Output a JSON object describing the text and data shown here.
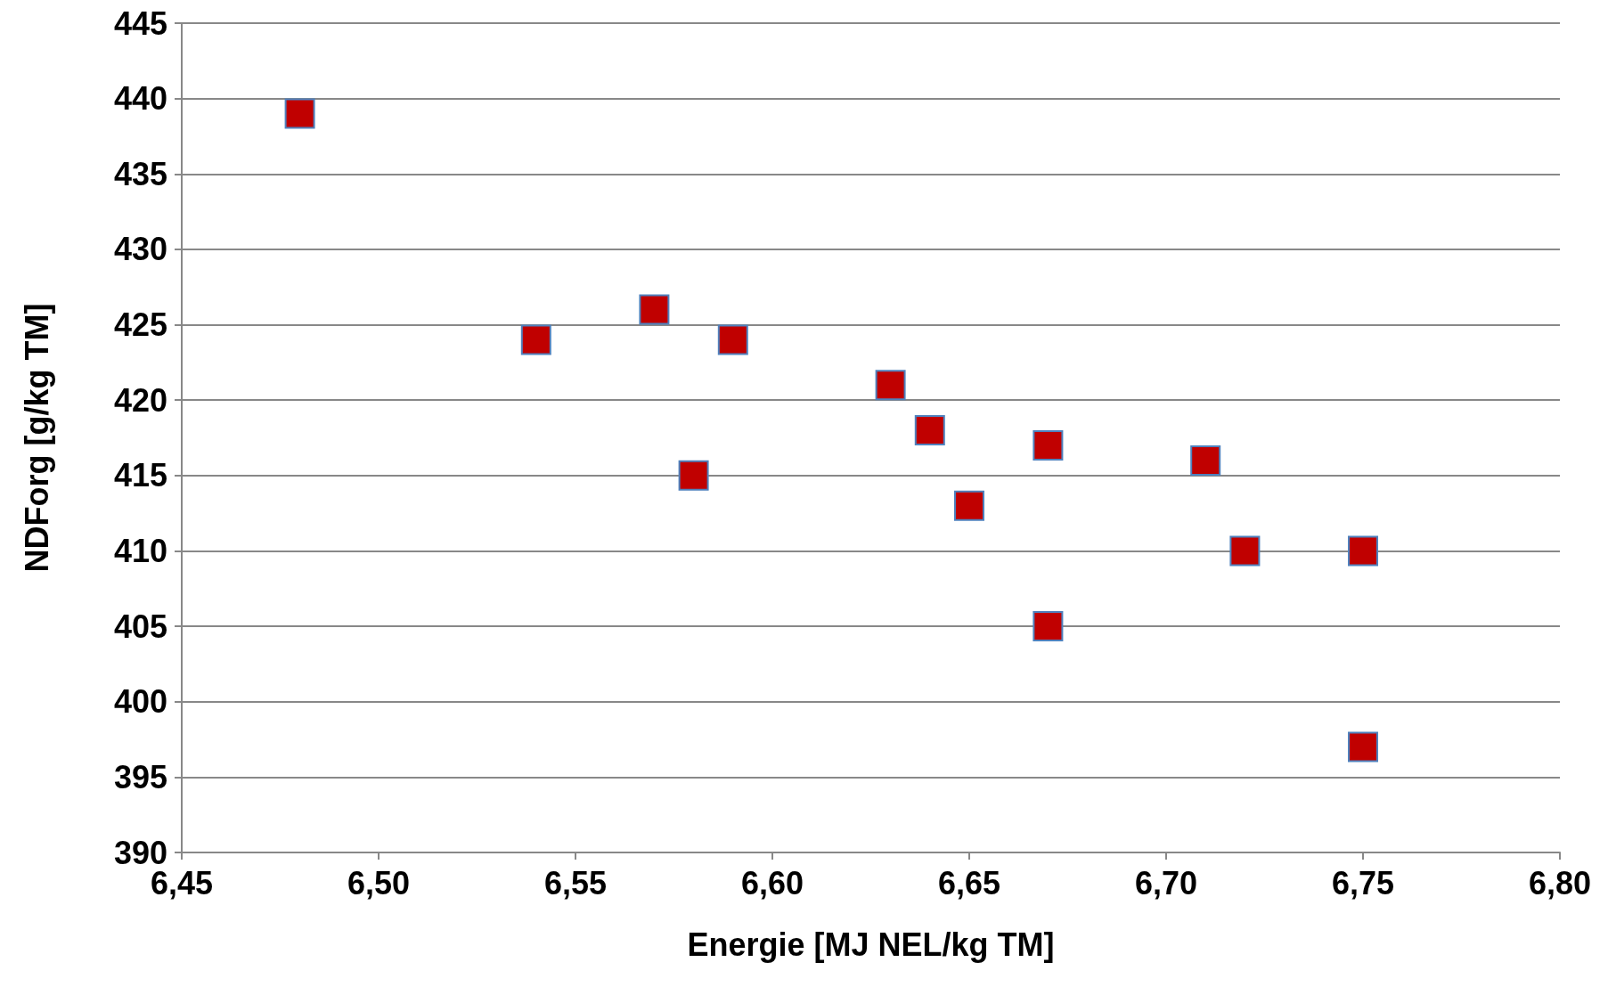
{
  "chart_data": {
    "type": "scatter",
    "xlabel": "Energie [MJ NEL/kg TM]",
    "ylabel": "NDForg [g/kg TM]",
    "x": [
      6.48,
      6.54,
      6.57,
      6.58,
      6.59,
      6.63,
      6.64,
      6.65,
      6.67,
      6.67,
      6.71,
      6.72,
      6.75,
      6.75
    ],
    "series": [
      {
        "color": "#c00000",
        "values": [
          439,
          424,
          426,
          415,
          424,
          421,
          418,
          413,
          417,
          405,
          416,
          410,
          410,
          397
        ]
      }
    ],
    "xlim": [
      6.45,
      6.8
    ],
    "xticks": [
      {
        "value": 6.45,
        "label": "6,45"
      },
      {
        "value": 6.5,
        "label": "6,50"
      },
      {
        "value": 6.55,
        "label": "6,55"
      },
      {
        "value": 6.6,
        "label": "6,60"
      },
      {
        "value": 6.65,
        "label": "6,65"
      },
      {
        "value": 6.7,
        "label": "6,70"
      },
      {
        "value": 6.75,
        "label": "6,75"
      },
      {
        "value": 6.8,
        "label": "6,80"
      }
    ],
    "ylim": [
      390,
      445
    ],
    "yticks": [
      390,
      395,
      400,
      405,
      410,
      415,
      420,
      425,
      430,
      435,
      440,
      445
    ],
    "grid": "y",
    "marker": "square"
  }
}
